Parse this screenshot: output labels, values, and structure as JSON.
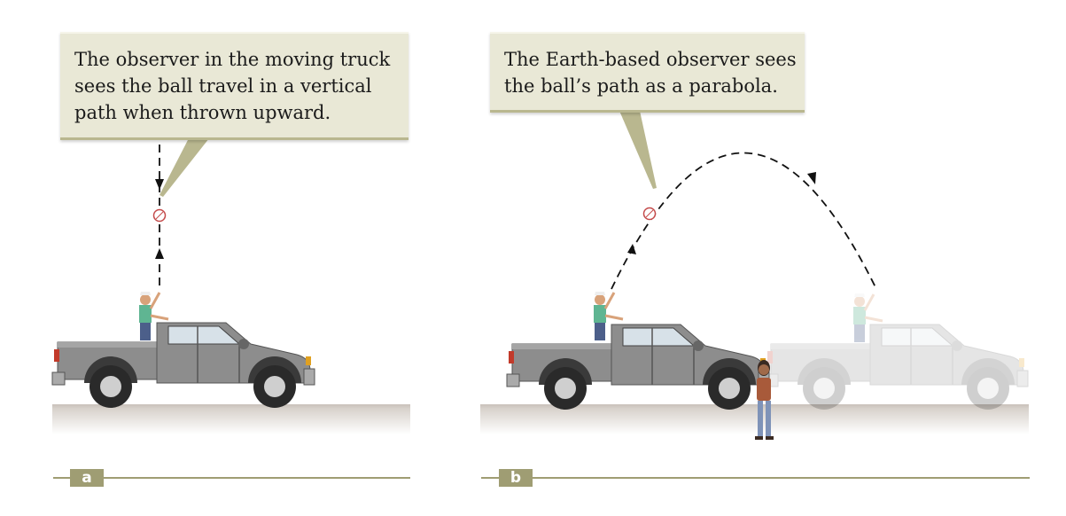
{
  "panel_a": {
    "caption_lines": [
      "The observer in the moving truck",
      "sees the ball travel in a vertical",
      "path when thrown upward."
    ],
    "label": "a"
  },
  "panel_b": {
    "caption_lines": [
      "The Earth-based observer sees",
      "the ball’s path as a parabola."
    ],
    "label": "b"
  },
  "colors": {
    "callout_bg": "#e9e8d6",
    "callout_border": "#b9b78f",
    "accent_line": "#9f9d73",
    "truck_body": "#8a8a8a",
    "ghost_truck": "#e2e2e2",
    "ground": "#cfc8c2"
  }
}
